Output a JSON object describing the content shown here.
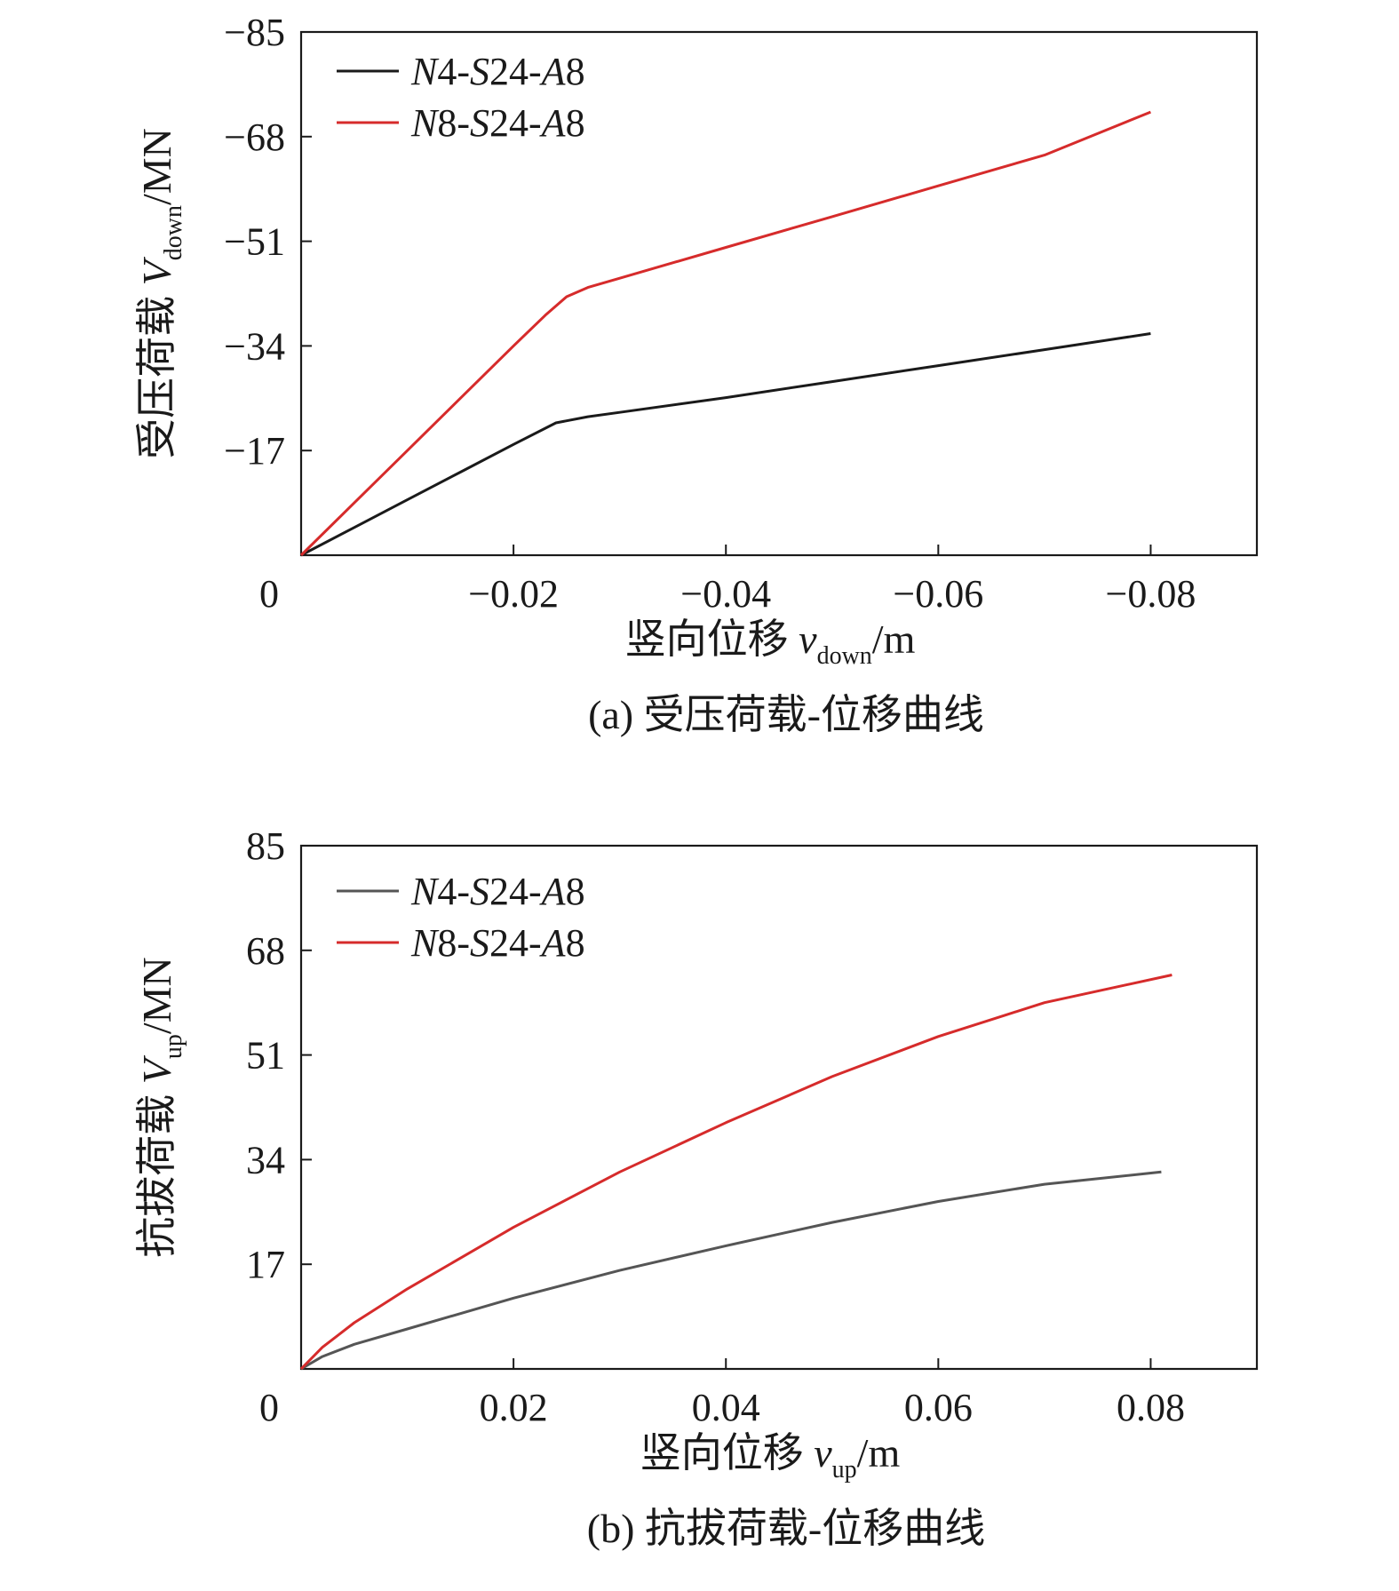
{
  "chart_data": [
    {
      "type": "line",
      "caption": "(a) 受压荷载-位移曲线",
      "xlabel": {
        "main": "竖向位移 ",
        "var": "v",
        "sub": "down",
        "unit": "/m"
      },
      "ylabel": {
        "main": "受压荷载 ",
        "var": "V",
        "sub": "down",
        "unit": "/MN"
      },
      "xlim": [
        0,
        -0.09
      ],
      "ylim": [
        0,
        -85
      ],
      "xticks": [
        0,
        -0.02,
        -0.04,
        -0.06,
        -0.08
      ],
      "xtick_labels": [
        "0",
        "−0.02",
        "−0.04",
        "−0.06",
        "−0.08"
      ],
      "yticks": [
        -17,
        -34,
        -51,
        -68,
        -85
      ],
      "ytick_labels": [
        "−17",
        "−34",
        "−51",
        "−68",
        "−85"
      ],
      "legend_position": "top-left",
      "series": [
        {
          "name": "N4-S24-A8",
          "color": "#1a1a1a",
          "x": [
            0,
            -0.005,
            -0.01,
            -0.015,
            -0.02,
            -0.024,
            -0.027,
            -0.03,
            -0.04,
            -0.05,
            -0.06,
            -0.07,
            -0.08
          ],
          "y": [
            0,
            -4.5,
            -9,
            -13.5,
            -18,
            -21.5,
            -22.5,
            -23.2,
            -25.6,
            -28.2,
            -30.8,
            -33.4,
            -36
          ]
        },
        {
          "name": "N8-S24-A8",
          "color": "#d62b2b",
          "x": [
            0,
            -0.005,
            -0.01,
            -0.015,
            -0.02,
            -0.023,
            -0.025,
            -0.027,
            -0.03,
            -0.04,
            -0.05,
            -0.06,
            -0.07,
            -0.08
          ],
          "y": [
            0,
            -8.5,
            -17,
            -25.5,
            -34,
            -39,
            -42,
            -43.5,
            -45,
            -50,
            -55,
            -60,
            -65,
            -72
          ]
        }
      ]
    },
    {
      "type": "line",
      "caption": "(b) 抗拔荷载-位移曲线",
      "xlabel": {
        "main": "竖向位移 ",
        "var": "v",
        "sub": "up",
        "unit": "/m"
      },
      "ylabel": {
        "main": "抗拔荷载 ",
        "var": "V",
        "sub": "up",
        "unit": "/MN"
      },
      "xlim": [
        0,
        0.09
      ],
      "ylim": [
        0,
        85
      ],
      "xticks": [
        0,
        0.02,
        0.04,
        0.06,
        0.08
      ],
      "xtick_labels": [
        "0",
        "0.02",
        "0.04",
        "0.06",
        "0.08"
      ],
      "yticks": [
        17,
        34,
        51,
        68,
        85
      ],
      "ytick_labels": [
        "17",
        "34",
        "51",
        "68",
        "85"
      ],
      "legend_position": "top-left",
      "series": [
        {
          "name": "N4-S24-A8",
          "color": "#555555",
          "x": [
            0,
            0.002,
            0.005,
            0.01,
            0.02,
            0.03,
            0.04,
            0.05,
            0.06,
            0.07,
            0.081
          ],
          "y": [
            0,
            2,
            4,
            6.5,
            11.5,
            16,
            20,
            23.8,
            27.2,
            30,
            32
          ]
        },
        {
          "name": "N8-S24-A8",
          "color": "#d62b2b",
          "x": [
            0,
            0.002,
            0.005,
            0.01,
            0.02,
            0.03,
            0.04,
            0.05,
            0.06,
            0.07,
            0.082
          ],
          "y": [
            0,
            3.5,
            7.5,
            13,
            23,
            32,
            40,
            47.5,
            54,
            59.5,
            64
          ]
        }
      ]
    }
  ]
}
